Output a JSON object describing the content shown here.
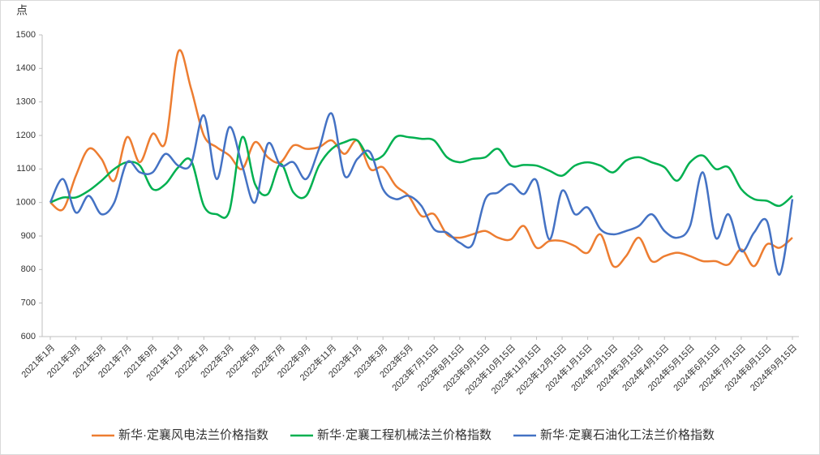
{
  "chart_data": {
    "type": "line",
    "y_label": "点",
    "categories": [
      "2021年1月",
      null,
      "2021年3月",
      null,
      "2021年5月",
      null,
      "2021年7月",
      null,
      "2021年9月",
      null,
      "2021年11月",
      null,
      "2022年1月",
      null,
      "2022年3月",
      null,
      "2022年5月",
      null,
      "2022年7月",
      null,
      "2022年9月",
      null,
      "2022年11月",
      null,
      "2023年1月",
      null,
      "2023年3月",
      null,
      "2023年5月",
      null,
      "2023年7月15日",
      null,
      "2023年8月15日",
      null,
      "2023年9月15日",
      null,
      "2023年10月15日",
      null,
      "2023年11月15日",
      null,
      "2023年12月15日",
      null,
      "2024年1月15日",
      null,
      "2024年2月15日",
      null,
      "2024年3月15日",
      null,
      "2024年4月15日",
      null,
      "2024年5月15日",
      null,
      "2024年6月15日",
      null,
      "2024年7月15日",
      null,
      "2024年8月15日",
      null,
      "2024年9月15日"
    ],
    "series": [
      {
        "name": "新华·定襄风电法兰价格指数",
        "color": "#ed7d31",
        "values": [
          1000,
          980,
          1080,
          1160,
          1130,
          1065,
          1195,
          1120,
          1205,
          1180,
          1450,
          1340,
          1200,
          1165,
          1140,
          1100,
          1180,
          1135,
          1120,
          1170,
          1160,
          1165,
          1185,
          1145,
          1185,
          1100,
          1105,
          1050,
          1020,
          960,
          965,
          905,
          895,
          905,
          915,
          895,
          890,
          930,
          865,
          885,
          885,
          870,
          850,
          905,
          810,
          840,
          895,
          825,
          840,
          850,
          840,
          825,
          825,
          815,
          860,
          810,
          875,
          865,
          895
        ]
      },
      {
        "name": "新华·定襄工程机械法兰价格指数",
        "color": "#00b050",
        "values": [
          1000,
          1015,
          1015,
          1035,
          1065,
          1100,
          1120,
          1110,
          1040,
          1055,
          1105,
          1125,
          990,
          965,
          975,
          1195,
          1055,
          1025,
          1115,
          1030,
          1020,
          1110,
          1160,
          1180,
          1185,
          1130,
          1140,
          1195,
          1195,
          1190,
          1185,
          1135,
          1120,
          1130,
          1135,
          1160,
          1110,
          1112,
          1110,
          1095,
          1080,
          1110,
          1120,
          1110,
          1090,
          1125,
          1135,
          1120,
          1105,
          1065,
          1120,
          1140,
          1100,
          1105,
          1040,
          1010,
          1005,
          990,
          1020
        ]
      },
      {
        "name": "新华·定襄石油化工法兰价格指数",
        "color": "#4472c4",
        "values": [
          1000,
          1070,
          970,
          1020,
          965,
          1000,
          1120,
          1090,
          1090,
          1145,
          1110,
          1115,
          1260,
          1070,
          1225,
          1110,
          1000,
          1175,
          1110,
          1120,
          1070,
          1160,
          1265,
          1080,
          1130,
          1150,
          1040,
          1010,
          1020,
          990,
          920,
          910,
          880,
          875,
          1010,
          1030,
          1055,
          1025,
          1065,
          890,
          1035,
          965,
          985,
          920,
          905,
          915,
          930,
          965,
          915,
          895,
          930,
          1090,
          895,
          965,
          855,
          910,
          945,
          785,
          1010
        ]
      }
    ],
    "ylim": [
      600,
      1500
    ],
    "yticks": [
      600,
      700,
      800,
      900,
      1000,
      1100,
      1200,
      1300,
      1400,
      1500
    ],
    "grid": false,
    "legend": "bottom"
  }
}
